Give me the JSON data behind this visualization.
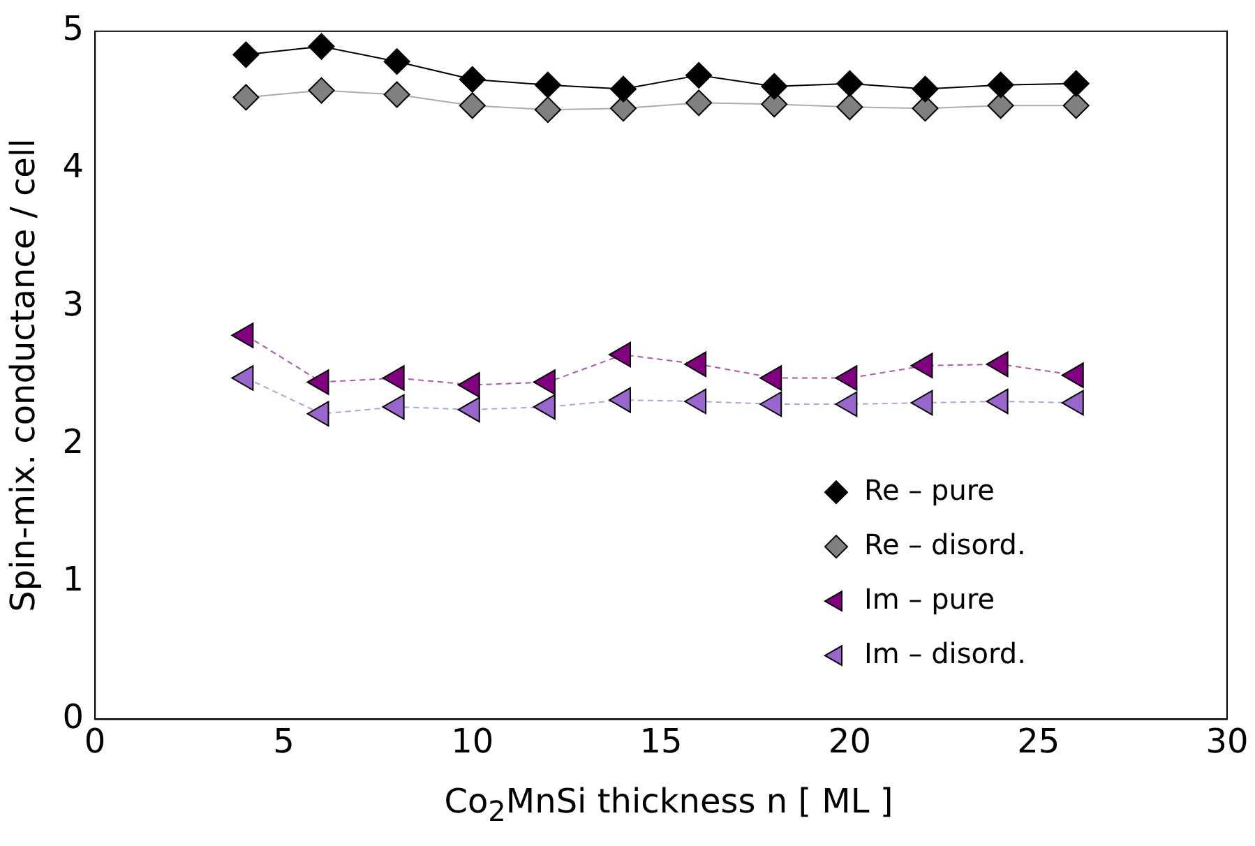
{
  "chart_data": {
    "type": "line",
    "xlabel": "Co$_{2}$MnSi thickness n [ ML ]",
    "ylabel": "Spin-mix. conductance / cell",
    "x": [
      4,
      6,
      8,
      10,
      12,
      14,
      16,
      18,
      20,
      22,
      24,
      26
    ],
    "series": [
      {
        "name": "Re – pure",
        "color": "#000000",
        "marker": "diamond",
        "line_style": "solid",
        "values": [
          4.83,
          4.89,
          4.78,
          4.65,
          4.61,
          4.58,
          4.68,
          4.6,
          4.62,
          4.58,
          4.61,
          4.62
        ]
      },
      {
        "name": "Re – disord.",
        "color": "#808080",
        "marker": "diamond",
        "line_style": "solid",
        "values": [
          4.52,
          4.57,
          4.54,
          4.46,
          4.43,
          4.44,
          4.48,
          4.47,
          4.45,
          4.44,
          4.46,
          4.46
        ]
      },
      {
        "name": "Im – pure",
        "color": "#800080",
        "marker": "triangle",
        "line_style": "dashed",
        "values": [
          2.79,
          2.45,
          2.48,
          2.43,
          2.45,
          2.65,
          2.58,
          2.48,
          2.48,
          2.57,
          2.58,
          2.5
        ]
      },
      {
        "name": "Im – disord.",
        "color": "#9966cc",
        "marker": "triangle",
        "line_style": "dashed",
        "values": [
          2.48,
          2.22,
          2.27,
          2.25,
          2.27,
          2.32,
          2.31,
          2.29,
          2.29,
          2.3,
          2.31,
          2.3
        ]
      }
    ],
    "xlim": [
      0,
      30
    ],
    "xticks": [
      0,
      5,
      10,
      15,
      20,
      25,
      30
    ],
    "ylim": [
      0,
      5
    ],
    "yticks": [
      0,
      1,
      2,
      3,
      4,
      5
    ],
    "grid": false,
    "legend": "right"
  }
}
